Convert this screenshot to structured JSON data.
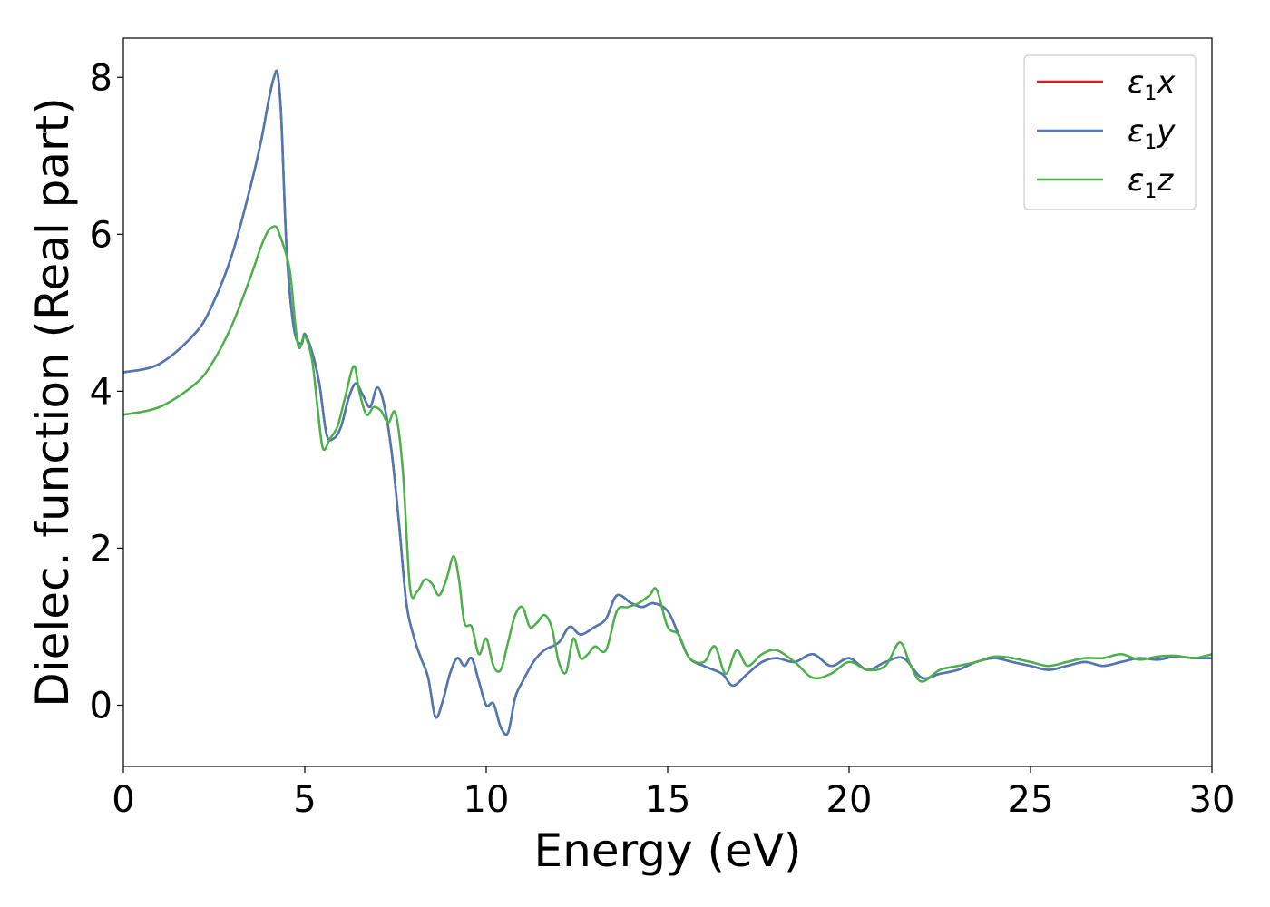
{
  "chart_data": {
    "type": "line",
    "title": "",
    "xlabel": "Energy (eV)",
    "ylabel": "Dielec. function (Real part)",
    "xlim": [
      0,
      30
    ],
    "ylim": [
      -0.78,
      8.5
    ],
    "xticks": [
      "0",
      "5",
      "10",
      "15",
      "20",
      "25",
      "30"
    ],
    "yticks": [
      "0",
      "2",
      "4",
      "6",
      "8"
    ],
    "grid": false,
    "legend_position": "top-right",
    "series": [
      {
        "name": "ε1x",
        "legend_base": "ε",
        "legend_sub": "1",
        "legend_tail": "x",
        "color": "#e41a1c",
        "x": [
          0,
          1,
          2,
          2.5,
          3,
          3.5,
          3.8,
          4.0,
          4.15,
          4.25,
          4.35,
          4.5,
          4.7,
          4.9,
          5.0,
          5.2,
          5.4,
          5.6,
          5.8,
          6.0,
          6.2,
          6.4,
          6.6,
          6.8,
          7.0,
          7.2,
          7.4,
          7.6,
          7.8,
          8.0,
          8.2,
          8.4,
          8.6,
          8.8,
          9.0,
          9.2,
          9.4,
          9.6,
          9.8,
          10.0,
          10.2,
          10.4,
          10.6,
          10.8,
          11.0,
          11.3,
          11.6,
          12.0,
          12.3,
          12.6,
          13.0,
          13.3,
          13.6,
          14.0,
          14.3,
          14.6,
          15.0,
          15.3,
          15.6,
          16.0,
          16.5,
          16.8,
          17.2,
          17.6,
          18.0,
          18.5,
          19.0,
          19.5,
          20.0,
          20.5,
          21.0,
          21.5,
          22.0,
          22.5,
          23.0,
          23.5,
          24.0,
          24.5,
          25.0,
          25.5,
          26.0,
          26.5,
          27.0,
          27.5,
          28.0,
          28.5,
          29.0,
          29.5,
          30.0
        ],
        "y": [
          4.24,
          4.35,
          4.75,
          5.15,
          5.75,
          6.6,
          7.2,
          7.7,
          8.0,
          8.05,
          7.5,
          5.8,
          4.8,
          4.6,
          4.73,
          4.5,
          4.1,
          3.45,
          3.4,
          3.55,
          3.9,
          4.1,
          3.95,
          3.8,
          4.05,
          3.8,
          3.2,
          2.3,
          1.3,
          0.88,
          0.6,
          0.35,
          -0.15,
          0.05,
          0.4,
          0.6,
          0.5,
          0.6,
          0.3,
          0.0,
          0.02,
          -0.28,
          -0.35,
          0.1,
          0.3,
          0.55,
          0.7,
          0.8,
          1.0,
          0.9,
          1.0,
          1.1,
          1.4,
          1.3,
          1.25,
          1.3,
          1.2,
          0.9,
          0.6,
          0.5,
          0.4,
          0.25,
          0.4,
          0.55,
          0.6,
          0.55,
          0.65,
          0.5,
          0.6,
          0.45,
          0.55,
          0.6,
          0.35,
          0.4,
          0.45,
          0.55,
          0.6,
          0.55,
          0.5,
          0.45,
          0.5,
          0.55,
          0.5,
          0.55,
          0.6,
          0.58,
          0.62,
          0.6,
          0.6
        ]
      },
      {
        "name": "ε1y",
        "legend_base": "ε",
        "legend_sub": "1",
        "legend_tail": "y",
        "color": "#4a7ab5",
        "x": [
          0,
          1,
          2,
          2.5,
          3,
          3.5,
          3.8,
          4.0,
          4.15,
          4.25,
          4.35,
          4.5,
          4.7,
          4.9,
          5.0,
          5.2,
          5.4,
          5.6,
          5.8,
          6.0,
          6.2,
          6.4,
          6.6,
          6.8,
          7.0,
          7.2,
          7.4,
          7.6,
          7.8,
          8.0,
          8.2,
          8.4,
          8.6,
          8.8,
          9.0,
          9.2,
          9.4,
          9.6,
          9.8,
          10.0,
          10.2,
          10.4,
          10.6,
          10.8,
          11.0,
          11.3,
          11.6,
          12.0,
          12.3,
          12.6,
          13.0,
          13.3,
          13.6,
          14.0,
          14.3,
          14.6,
          15.0,
          15.3,
          15.6,
          16.0,
          16.5,
          16.8,
          17.2,
          17.6,
          18.0,
          18.5,
          19.0,
          19.5,
          20.0,
          20.5,
          21.0,
          21.5,
          22.0,
          22.5,
          23.0,
          23.5,
          24.0,
          24.5,
          25.0,
          25.5,
          26.0,
          26.5,
          27.0,
          27.5,
          28.0,
          28.5,
          29.0,
          29.5,
          30.0
        ],
        "y": [
          4.24,
          4.35,
          4.75,
          5.15,
          5.75,
          6.6,
          7.2,
          7.7,
          8.0,
          8.05,
          7.5,
          5.8,
          4.8,
          4.6,
          4.73,
          4.5,
          4.1,
          3.45,
          3.4,
          3.55,
          3.9,
          4.1,
          3.95,
          3.8,
          4.05,
          3.8,
          3.2,
          2.3,
          1.3,
          0.88,
          0.6,
          0.35,
          -0.15,
          0.05,
          0.4,
          0.6,
          0.5,
          0.6,
          0.3,
          0.0,
          0.02,
          -0.28,
          -0.35,
          0.1,
          0.3,
          0.55,
          0.7,
          0.8,
          1.0,
          0.9,
          1.0,
          1.1,
          1.4,
          1.3,
          1.25,
          1.3,
          1.2,
          0.9,
          0.6,
          0.5,
          0.4,
          0.25,
          0.4,
          0.55,
          0.6,
          0.55,
          0.65,
          0.5,
          0.6,
          0.45,
          0.55,
          0.6,
          0.35,
          0.4,
          0.45,
          0.55,
          0.6,
          0.55,
          0.5,
          0.45,
          0.5,
          0.55,
          0.5,
          0.55,
          0.6,
          0.58,
          0.62,
          0.6,
          0.6
        ]
      },
      {
        "name": "ε1z",
        "legend_base": "ε",
        "legend_sub": "1",
        "legend_tail": "z",
        "color": "#4daf4a",
        "x": [
          0,
          1,
          2,
          2.5,
          3,
          3.5,
          3.8,
          4.0,
          4.2,
          4.3,
          4.45,
          4.6,
          4.75,
          4.85,
          5.0,
          5.2,
          5.35,
          5.5,
          5.7,
          5.9,
          6.1,
          6.35,
          6.5,
          6.7,
          6.9,
          7.1,
          7.3,
          7.5,
          7.7,
          7.9,
          8.1,
          8.3,
          8.5,
          8.7,
          8.9,
          9.1,
          9.25,
          9.4,
          9.6,
          9.8,
          10.0,
          10.2,
          10.4,
          10.6,
          10.8,
          11.0,
          11.2,
          11.4,
          11.6,
          11.8,
          12.0,
          12.2,
          12.4,
          12.6,
          12.8,
          13.0,
          13.3,
          13.6,
          13.9,
          14.2,
          14.5,
          14.7,
          15.0,
          15.3,
          15.6,
          16.0,
          16.3,
          16.6,
          16.9,
          17.2,
          17.6,
          18.0,
          18.5,
          19.0,
          19.5,
          20.0,
          20.5,
          21.0,
          21.4,
          21.7,
          22.0,
          22.5,
          23.0,
          23.5,
          24.0,
          24.5,
          25.0,
          25.5,
          26.0,
          26.5,
          27.0,
          27.5,
          28.0,
          28.5,
          29.0,
          29.5,
          30.0
        ],
        "y": [
          3.7,
          3.8,
          4.1,
          4.4,
          4.85,
          5.45,
          5.85,
          6.05,
          6.1,
          6.0,
          5.8,
          5.5,
          4.8,
          4.55,
          4.7,
          4.4,
          3.8,
          3.27,
          3.4,
          3.55,
          3.9,
          4.32,
          4.0,
          3.7,
          3.8,
          3.75,
          3.6,
          3.72,
          3.0,
          1.5,
          1.45,
          1.6,
          1.55,
          1.4,
          1.6,
          1.9,
          1.6,
          1.05,
          1.0,
          0.65,
          0.85,
          0.5,
          0.45,
          0.8,
          1.15,
          1.25,
          1.0,
          1.05,
          1.15,
          1.0,
          0.55,
          0.42,
          0.85,
          0.6,
          0.65,
          0.75,
          0.7,
          1.2,
          1.25,
          1.3,
          1.4,
          1.47,
          1.0,
          0.9,
          0.6,
          0.55,
          0.75,
          0.4,
          0.7,
          0.5,
          0.65,
          0.7,
          0.55,
          0.35,
          0.4,
          0.55,
          0.45,
          0.5,
          0.8,
          0.5,
          0.3,
          0.45,
          0.5,
          0.55,
          0.62,
          0.6,
          0.55,
          0.5,
          0.55,
          0.6,
          0.6,
          0.65,
          0.58,
          0.62,
          0.63,
          0.6,
          0.65
        ]
      }
    ]
  }
}
